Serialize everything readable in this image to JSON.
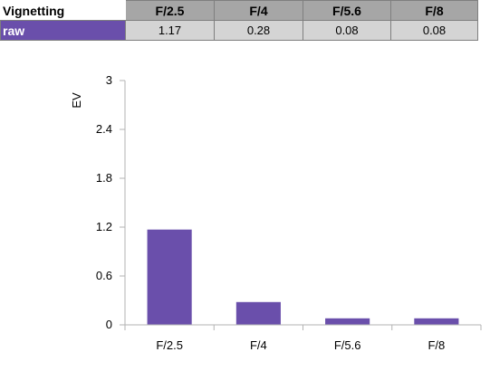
{
  "table": {
    "corner_label": "Vignetting",
    "headers": [
      "F/2.5",
      "F/4",
      "F/5.6",
      "F/8"
    ],
    "row_label": "raw",
    "row_values": [
      "1.17",
      "0.28",
      "0.08",
      "0.08"
    ]
  },
  "colors": {
    "bar": "#6a4fab",
    "row_label_bg": "#6a4fab",
    "header_bg": "#a6a6a6",
    "cell_bg": "#d4d4d4",
    "axis": "#b3b3b3"
  },
  "chart_data": {
    "type": "bar",
    "categories": [
      "F/2.5",
      "F/4",
      "F/5.6",
      "F/8"
    ],
    "series": [
      {
        "values": [
          1.17,
          0.28,
          0.08,
          0.08
        ]
      }
    ],
    "title": "",
    "xlabel": "",
    "ylabel": "EV",
    "ylim": [
      0,
      3
    ],
    "yticks": [
      0,
      0.6,
      1.2,
      1.8,
      2.4,
      3
    ],
    "ytick_labels": [
      "0",
      "0.6",
      "1.2",
      "1.8",
      "2.4",
      "3"
    ],
    "grid": false,
    "legend": "none"
  }
}
